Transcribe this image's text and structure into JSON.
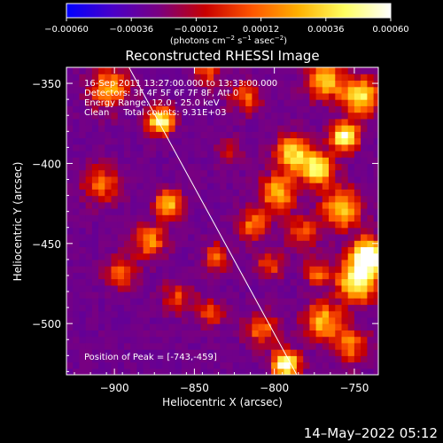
{
  "chart_data": {
    "type": "heatmap",
    "title": "Reconstructed RHESSI Image",
    "xlabel": "Heliocentric X (arcsec)",
    "ylabel": "Heliocentric Y (arcsec)",
    "xlim": [
      -930,
      -735
    ],
    "ylim": [
      -532,
      -340
    ],
    "x_ticks": [
      -900,
      -850,
      -800,
      -750
    ],
    "y_ticks": [
      -350,
      -400,
      -450,
      -500
    ],
    "x_tick_labels": [
      "−900",
      "−850",
      "−800",
      "−750"
    ],
    "y_tick_labels": [
      "−350",
      "−400",
      "−450",
      "−500"
    ],
    "colorbar": {
      "range": [
        -0.0006,
        0.0006
      ],
      "ticks": [
        -0.0006,
        -0.00036,
        -0.00012,
        0.00012,
        0.00036,
        0.0006
      ],
      "tick_labels": [
        "−0.00060",
        "−0.00036",
        "−0.00012",
        "0.00012",
        "0.00036",
        "0.00060"
      ],
      "colors": [
        "#0000ff",
        "#4a00c8",
        "#7a0080",
        "#c80000",
        "#ff5500",
        "#ffb000",
        "#ffff60",
        "#ffffff"
      ]
    },
    "annotations": [
      "16-Sep-2011 13:27:00.000 to 13:33:00.000",
      "Detectors: 3F 4F 5F 6F 7F 8F, Att 0",
      "Energy Range: 12.0 - 25.0 keV",
      "Clean     Total counts: 9.31E+03"
    ],
    "peak_label": "Position of Peak = [-743,-459]",
    "peak": {
      "x": -743,
      "y": -459
    },
    "limb_line": [
      [
        -892,
        -338
      ],
      [
        -786,
        -532
      ]
    ],
    "hotspots": [
      {
        "x": -873,
        "y": -375,
        "a": 1.1,
        "s": 6
      },
      {
        "x": -905,
        "y": -355,
        "a": 0.7,
        "s": 9
      },
      {
        "x": -910,
        "y": -415,
        "a": 0.6,
        "s": 8
      },
      {
        "x": -868,
        "y": -427,
        "a": 0.9,
        "s": 6
      },
      {
        "x": -880,
        "y": -450,
        "a": 0.7,
        "s": 7
      },
      {
        "x": -898,
        "y": -470,
        "a": 0.55,
        "s": 7
      },
      {
        "x": -862,
        "y": -485,
        "a": 0.45,
        "s": 7
      },
      {
        "x": -842,
        "y": -495,
        "a": 0.5,
        "s": 6
      },
      {
        "x": -838,
        "y": -460,
        "a": 0.55,
        "s": 6
      },
      {
        "x": -810,
        "y": -505,
        "a": 0.6,
        "s": 7
      },
      {
        "x": -795,
        "y": -527,
        "a": 1.2,
        "s": 6
      },
      {
        "x": -772,
        "y": -500,
        "a": 0.8,
        "s": 8
      },
      {
        "x": -750,
        "y": -475,
        "a": 1.1,
        "s": 9
      },
      {
        "x": -743,
        "y": -459,
        "a": 1.4,
        "s": 7
      },
      {
        "x": -755,
        "y": -515,
        "a": 0.6,
        "s": 8
      },
      {
        "x": -790,
        "y": -395,
        "a": 0.9,
        "s": 8
      },
      {
        "x": -775,
        "y": -405,
        "a": 1.0,
        "s": 7
      },
      {
        "x": -758,
        "y": -385,
        "a": 1.2,
        "s": 6
      },
      {
        "x": -748,
        "y": -360,
        "a": 1.0,
        "s": 8
      },
      {
        "x": -770,
        "y": -350,
        "a": 0.8,
        "s": 8
      },
      {
        "x": -800,
        "y": -420,
        "a": 0.8,
        "s": 8
      },
      {
        "x": -760,
        "y": -430,
        "a": 0.85,
        "s": 9
      },
      {
        "x": -785,
        "y": -445,
        "a": 0.5,
        "s": 7
      },
      {
        "x": -815,
        "y": -440,
        "a": 0.6,
        "s": 7
      },
      {
        "x": -805,
        "y": -465,
        "a": 0.5,
        "s": 6
      },
      {
        "x": -775,
        "y": -470,
        "a": 0.55,
        "s": 6
      },
      {
        "x": -820,
        "y": -360,
        "a": 0.55,
        "s": 7
      },
      {
        "x": -845,
        "y": -345,
        "a": 0.45,
        "s": 7
      },
      {
        "x": -830,
        "y": -395,
        "a": 0.35,
        "s": 6
      }
    ]
  },
  "footer": {
    "date": "14–May–2022 05:12"
  }
}
